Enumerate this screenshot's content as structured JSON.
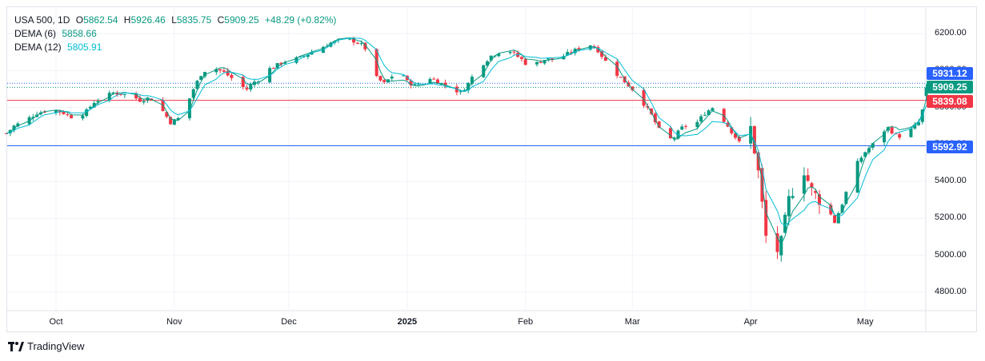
{
  "legend": {
    "symbol": "USA 500, 1D",
    "open_label": "O",
    "open": "5862.54",
    "high_label": "H",
    "high": "5926.46",
    "low_label": "L",
    "low": "5835.75",
    "close_label": "C",
    "close": "5909.25",
    "change": "+48.29 (+0.82%)",
    "dema6_label": "DEMA (6)",
    "dema6_value": "5858.66",
    "dema12_label": "DEMA (12)",
    "dema12_value": "5805.91"
  },
  "brand": "TradingView",
  "colors": {
    "up": "#089981",
    "down": "#f23645",
    "dema6": "#089981",
    "dema12": "#00bcd4",
    "hline_red": "#f23645",
    "hline_blue": "#2962ff",
    "grid": "#f0f3fa"
  },
  "price_tags": {
    "dotted_top": "5931.12",
    "current": "5909.25",
    "red_line": "5839.08",
    "blue_line": "5592.92"
  },
  "chart_data": {
    "type": "candlestick",
    "ylim": [
      4700,
      6300
    ],
    "y_ticks": [
      "6200.00",
      "6000.00",
      "5800.00",
      "5600.00",
      "5400.00",
      "5200.00",
      "5000.00",
      "4800.00"
    ],
    "x_ticks": [
      {
        "label": "Oct",
        "day": 0
      },
      {
        "label": "Nov",
        "day": 31
      },
      {
        "label": "Dec",
        "day": 61
      },
      {
        "label": "2025",
        "day": 92,
        "bold": true
      },
      {
        "label": "Feb",
        "day": 123
      },
      {
        "label": "Mar",
        "day": 151
      },
      {
        "label": "Apr",
        "day": 182
      },
      {
        "label": "May",
        "day": 212
      }
    ],
    "horizontal_lines": [
      {
        "value": 5931.12,
        "style": "dotted",
        "color": "#2962ff"
      },
      {
        "value": 5909.25,
        "style": "dotted",
        "color": "#089981"
      },
      {
        "value": 5839.08,
        "style": "solid",
        "color": "#f23645"
      },
      {
        "value": 5592.92,
        "style": "solid",
        "color": "#2962ff"
      }
    ],
    "close_path": [
      [
        -13,
        5660
      ],
      [
        -11,
        5700
      ],
      [
        -8,
        5730
      ],
      [
        -5,
        5770
      ],
      [
        -1,
        5790
      ],
      [
        2,
        5770
      ],
      [
        5,
        5740
      ],
      [
        8,
        5780
      ],
      [
        10,
        5830
      ],
      [
        13,
        5860
      ],
      [
        15,
        5880
      ],
      [
        18,
        5870
      ],
      [
        20,
        5860
      ],
      [
        22,
        5840
      ],
      [
        24,
        5850
      ],
      [
        26,
        5840
      ],
      [
        28,
        5780
      ],
      [
        30,
        5720
      ],
      [
        32,
        5740
      ],
      [
        34,
        5800
      ],
      [
        36,
        5900
      ],
      [
        38,
        5980
      ],
      [
        40,
        6020
      ],
      [
        42,
        6010
      ],
      [
        44,
        5990
      ],
      [
        46,
        5960
      ],
      [
        48,
        5920
      ],
      [
        50,
        5900
      ],
      [
        52,
        5940
      ],
      [
        54,
        5960
      ],
      [
        56,
        6010
      ],
      [
        58,
        6030
      ],
      [
        60,
        6050
      ],
      [
        62,
        6060
      ],
      [
        64,
        6070
      ],
      [
        66,
        6090
      ],
      [
        68,
        6110
      ],
      [
        70,
        6130
      ],
      [
        72,
        6150
      ],
      [
        74,
        6160
      ],
      [
        76,
        6170
      ],
      [
        78,
        6160
      ],
      [
        80,
        6140
      ],
      [
        82,
        6100
      ],
      [
        84,
        5960
      ],
      [
        86,
        5930
      ],
      [
        88,
        5970
      ],
      [
        90,
        6010
      ],
      [
        92,
        5940
      ],
      [
        94,
        5920
      ],
      [
        96,
        5940
      ],
      [
        98,
        5960
      ],
      [
        100,
        5940
      ],
      [
        102,
        5920
      ],
      [
        104,
        5900
      ],
      [
        106,
        5880
      ],
      [
        108,
        5930
      ],
      [
        110,
        6000
      ],
      [
        112,
        6040
      ],
      [
        114,
        6080
      ],
      [
        116,
        6100
      ],
      [
        118,
        6120
      ],
      [
        120,
        6090
      ],
      [
        122,
        6060
      ],
      [
        124,
        6020
      ],
      [
        126,
        6040
      ],
      [
        128,
        6060
      ],
      [
        130,
        6060
      ],
      [
        132,
        6070
      ],
      [
        134,
        6090
      ],
      [
        136,
        6110
      ],
      [
        138,
        6130
      ],
      [
        140,
        6140
      ],
      [
        142,
        6110
      ],
      [
        144,
        6050
      ],
      [
        146,
        6000
      ],
      [
        148,
        5960
      ],
      [
        150,
        5920
      ],
      [
        152,
        5880
      ],
      [
        154,
        5820
      ],
      [
        156,
        5760
      ],
      [
        158,
        5680
      ],
      [
        160,
        5620
      ],
      [
        162,
        5640
      ],
      [
        164,
        5690
      ],
      [
        166,
        5710
      ],
      [
        168,
        5720
      ],
      [
        170,
        5770
      ],
      [
        172,
        5800
      ],
      [
        174,
        5760
      ],
      [
        176,
        5700
      ],
      [
        178,
        5640
      ],
      [
        180,
        5580
      ],
      [
        182,
        5690
      ],
      [
        184,
        5450
      ],
      [
        186,
        5100
      ],
      [
        188,
        4980
      ],
      [
        190,
        5070
      ],
      [
        192,
        5300
      ],
      [
        194,
        5400
      ],
      [
        196,
        5460
      ],
      [
        198,
        5350
      ],
      [
        200,
        5300
      ],
      [
        202,
        5260
      ],
      [
        204,
        5180
      ],
      [
        206,
        5280
      ],
      [
        208,
        5400
      ],
      [
        210,
        5500
      ],
      [
        212,
        5560
      ],
      [
        214,
        5600
      ],
      [
        216,
        5660
      ],
      [
        218,
        5690
      ],
      [
        220,
        5650
      ],
      [
        222,
        5640
      ],
      [
        224,
        5680
      ],
      [
        226,
        5720
      ],
      [
        228,
        5850
      ],
      [
        230,
        5909
      ]
    ]
  }
}
